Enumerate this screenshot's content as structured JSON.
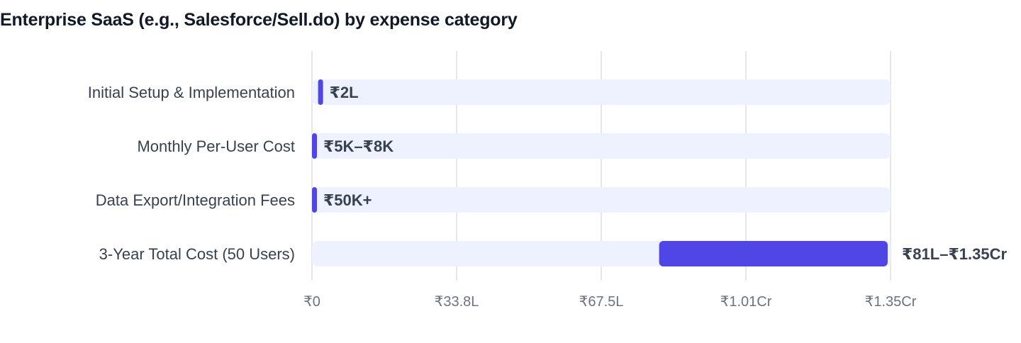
{
  "chart_data": {
    "type": "bar",
    "orientation": "horizontal",
    "title": "Enterprise SaaS (e.g., Salesforce/Sell.do) by expense category",
    "xlabel": "",
    "ylabel": "",
    "unit": "INR",
    "xlim": [
      0,
      13500000
    ],
    "x_ticks": [
      {
        "value": 0,
        "label": "₹0"
      },
      {
        "value": 3375000,
        "label": "₹33.8L"
      },
      {
        "value": 6750000,
        "label": "₹67.5L"
      },
      {
        "value": 10125000,
        "label": "₹1.01Cr"
      },
      {
        "value": 13500000,
        "label": "₹1.35Cr"
      }
    ],
    "grid": true,
    "categories": [
      "Initial Setup & Implementation",
      "Monthly Per-User Cost",
      "Data Export/Integration Fees",
      "3-Year Total Cost (50 Users)"
    ],
    "ranges": [
      [
        200000,
        200000
      ],
      [
        5000,
        8000
      ],
      [
        50000,
        50000
      ],
      [
        8100000,
        13500000
      ]
    ],
    "value_labels": [
      "₹2L",
      "₹5K–₹8K",
      "₹50K+",
      "₹81L–₹1.35Cr"
    ],
    "colors": {
      "bar": "#4f46e5",
      "track": "#eef2ff",
      "grid": "#e5e7eb"
    }
  }
}
